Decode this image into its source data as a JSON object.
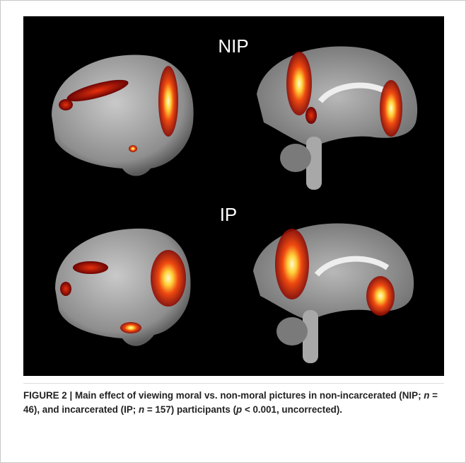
{
  "figure": {
    "panels": [
      "NIP",
      "IP"
    ],
    "caption": [
      "FIGURE 2 | Main effect of viewing moral vs. non-moral pictures in non-incarcerated (NIP; ",
      "n",
      " = 46), and incarcerated (IP; ",
      "n",
      " = 157) participants (",
      "p",
      " < 0.001, uncorrected)."
    ]
  }
}
